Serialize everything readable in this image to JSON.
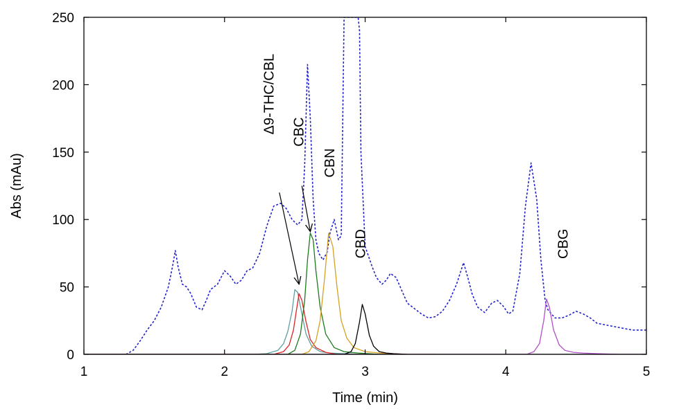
{
  "chart_data": {
    "type": "line",
    "title": "",
    "xlabel": "Time (min)",
    "ylabel": "Abs (mAu)",
    "xlim": [
      1,
      5
    ],
    "ylim": [
      0,
      250
    ],
    "xticks": [
      1,
      2,
      3,
      4,
      5
    ],
    "yticks": [
      0,
      50,
      100,
      150,
      200,
      250
    ],
    "xtick_labels": [
      "1",
      "2",
      "3",
      "4",
      "5"
    ],
    "ytick_labels": [
      "0",
      "50",
      "100",
      "150",
      "200",
      "250"
    ],
    "grid": false,
    "legend": "none",
    "series": [
      {
        "color": "#2222cc",
        "dash": true,
        "x": [
          1.0,
          1.3,
          1.35,
          1.4,
          1.45,
          1.5,
          1.55,
          1.6,
          1.63,
          1.65,
          1.67,
          1.7,
          1.73,
          1.76,
          1.8,
          1.84,
          1.87,
          1.9,
          1.95,
          2.0,
          2.04,
          2.08,
          2.12,
          2.16,
          2.2,
          2.25,
          2.3,
          2.35,
          2.4,
          2.44,
          2.48,
          2.52,
          2.55,
          2.57,
          2.59,
          2.61,
          2.63,
          2.65,
          2.67,
          2.7,
          2.73,
          2.75,
          2.78,
          2.81,
          2.83,
          2.85,
          2.9,
          2.95,
          2.96,
          2.97,
          3.0,
          3.05,
          3.08,
          3.12,
          3.15,
          3.18,
          3.22,
          3.3,
          3.4,
          3.45,
          3.5,
          3.55,
          3.6,
          3.65,
          3.7,
          3.73,
          3.76,
          3.8,
          3.85,
          3.9,
          3.94,
          3.98,
          4.02,
          4.05,
          4.1,
          4.14,
          4.18,
          4.22,
          4.25,
          4.28,
          4.3,
          4.35,
          4.4,
          4.45,
          4.5,
          4.55,
          4.6,
          4.65,
          4.7,
          4.75,
          4.8,
          4.85,
          4.9,
          4.95,
          5.0
        ],
        "y": [
          0,
          0,
          3,
          10,
          18,
          25,
          35,
          50,
          65,
          77,
          65,
          52,
          50,
          45,
          35,
          33,
          40,
          48,
          52,
          62,
          58,
          52,
          55,
          62,
          64,
          75,
          95,
          110,
          112,
          108,
          100,
          96,
          100,
          140,
          215,
          175,
          115,
          85,
          75,
          70,
          76,
          90,
          100,
          85,
          88,
          250,
          250,
          250,
          240,
          150,
          80,
          65,
          57,
          52,
          55,
          60,
          57,
          38,
          30,
          27,
          28,
          32,
          40,
          52,
          68,
          57,
          45,
          35,
          31,
          38,
          40,
          36,
          30,
          32,
          60,
          110,
          142,
          115,
          70,
          40,
          33,
          27,
          27,
          29,
          32,
          30,
          27,
          23,
          22,
          21,
          20,
          19,
          18,
          18,
          18
        ]
      },
      {
        "color": "#5f9ea0",
        "dash": false,
        "x": [
          1.0,
          2.2,
          2.3,
          2.38,
          2.42,
          2.45,
          2.48,
          2.5,
          2.52,
          2.55,
          2.58,
          2.62,
          2.68,
          2.75,
          2.85,
          3.0,
          3.2
        ],
        "y": [
          0,
          0,
          0.5,
          3,
          8,
          17,
          32,
          48,
          46,
          30,
          15,
          6,
          2,
          1,
          0.5,
          0,
          0
        ]
      },
      {
        "color": "#dd2222",
        "dash": false,
        "x": [
          1.0,
          2.35,
          2.42,
          2.46,
          2.49,
          2.51,
          2.53,
          2.55,
          2.58,
          2.61,
          2.65,
          2.72,
          2.8,
          3.2
        ],
        "y": [
          0,
          0,
          2,
          7,
          18,
          32,
          45,
          40,
          24,
          11,
          5,
          1.5,
          0,
          0
        ]
      },
      {
        "color": "#1a7a1a",
        "dash": false,
        "x": [
          1.0,
          2.45,
          2.5,
          2.54,
          2.57,
          2.59,
          2.61,
          2.63,
          2.65,
          2.68,
          2.72,
          2.78,
          2.85,
          2.95,
          3.1,
          3.3
        ],
        "y": [
          0,
          0,
          3,
          15,
          40,
          70,
          90,
          85,
          62,
          35,
          15,
          5,
          2,
          1,
          0,
          0
        ]
      },
      {
        "color": "#d4a020",
        "dash": false,
        "x": [
          1.0,
          2.55,
          2.6,
          2.65,
          2.68,
          2.71,
          2.74,
          2.77,
          2.8,
          2.83,
          2.87,
          2.92,
          3.0,
          3.1,
          3.3,
          3.5
        ],
        "y": [
          0,
          0,
          2,
          10,
          25,
          55,
          90,
          80,
          50,
          25,
          12,
          5,
          2,
          1,
          0,
          0
        ]
      },
      {
        "color": "#000000",
        "dash": false,
        "x": [
          1.0,
          2.85,
          2.9,
          2.93,
          2.96,
          2.98,
          3.0,
          3.03,
          3.06,
          3.1,
          3.15,
          3.2,
          3.3,
          3.5,
          5.0
        ],
        "y": [
          0,
          0,
          2,
          8,
          24,
          37,
          30,
          14,
          6,
          2,
          1,
          0.5,
          0,
          0,
          0
        ]
      },
      {
        "color": "#b050c8",
        "dash": false,
        "x": [
          1.0,
          4.15,
          4.2,
          4.24,
          4.27,
          4.29,
          4.31,
          4.34,
          4.38,
          4.42,
          4.48,
          4.55,
          4.65,
          4.8,
          5.0
        ],
        "y": [
          0,
          0,
          2,
          8,
          25,
          41,
          35,
          18,
          7,
          3,
          1.5,
          1,
          0.5,
          0,
          0
        ]
      }
    ],
    "annotations": [
      {
        "text": "Δ9-THC/CBL",
        "x": 2.35,
        "y": 193,
        "arrow_from": [
          2.39,
          120
        ],
        "arrow_to": [
          2.53,
          52
        ]
      },
      {
        "text": "CBC",
        "x": 2.56,
        "y": 165,
        "arrow_from": [
          2.55,
          125
        ],
        "arrow_to": [
          2.61,
          91
        ]
      },
      {
        "text": "CBN",
        "x": 2.78,
        "y": 142
      },
      {
        "text": "CBD",
        "x": 3.0,
        "y": 82
      },
      {
        "text": "CBG",
        "x": 4.44,
        "y": 82
      }
    ]
  }
}
